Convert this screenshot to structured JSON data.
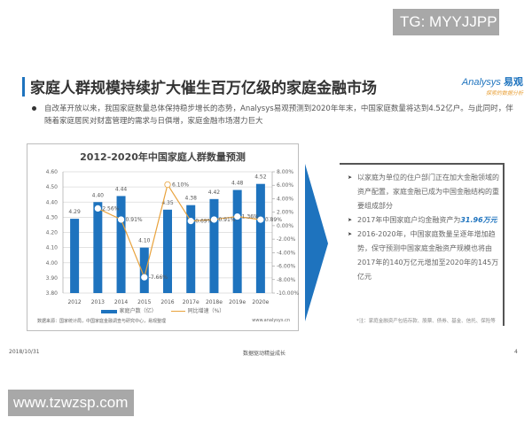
{
  "watermarks": {
    "top": "TG: MYYJJPP",
    "bottom": "www.tzwzsp.com"
  },
  "slide": {
    "title": "家庭人群规模持续扩大催生百万亿级的家庭金融市场",
    "logo": {
      "brand": "Analysys",
      "brand_cn": "易观",
      "tagline": "探索的数据分析"
    },
    "summary": "自改革开放以来，我国家庭数量总体保持稳步增长的态势，Analysys易观预测到2020年年末，中国家庭数量将达到4.52亿户。与此同时，伴随着家庭居民对财富管理的需求与日俱增，家庭金融市场潜力巨大",
    "points": [
      {
        "text": "以家庭为单位的住户部门正在加大金融领域的资产配置，家庭金融已成为中国金融结构的重要组成部分"
      },
      {
        "prefix": "2017年中国家庭户均金融资产为",
        "highlight": "31.96万元"
      },
      {
        "text": "2016-2020年，中国家庭数量呈逐年增加趋势，保守预测中国家庭金融资产规模也将由2017年的140万亿元增加至2020年的145万亿元"
      }
    ],
    "note": "*注：家庭金融资产包括存款、股票、债券、基金、信托、保险等",
    "footer": {
      "date": "2018/10/31",
      "center": "数据驱动精益成长",
      "page": "4"
    }
  },
  "chart_data": {
    "type": "bar",
    "title": "2012-2020年中国家庭人群数量预测",
    "categories": [
      "2012",
      "2013",
      "2014",
      "2015",
      "2016",
      "2017e",
      "2018e",
      "2019e",
      "2020e"
    ],
    "series": [
      {
        "name": "家庭户数（亿）",
        "type": "bar",
        "axis": "left",
        "color": "#1e73be",
        "values": [
          4.29,
          4.4,
          4.44,
          4.1,
          4.35,
          4.38,
          4.42,
          4.48,
          4.52
        ]
      },
      {
        "name": "同比增速（%）",
        "type": "line",
        "axis": "right",
        "color": "#e8a23c",
        "values": [
          null,
          2.56,
          0.91,
          -7.66,
          6.1,
          0.69,
          0.91,
          1.36,
          0.89
        ],
        "labels": [
          "",
          "2.56%",
          "0.91%",
          "-7.66%",
          "6.10%",
          "0.69%",
          "0.91%",
          "1.36%",
          "0.89%"
        ]
      }
    ],
    "y_left": {
      "min": 3.8,
      "max": 4.6,
      "step": 0.1,
      "ticks": [
        "4.60",
        "4.50",
        "4.40",
        "4.30",
        "4.20",
        "4.10",
        "4.00",
        "3.90",
        "3.80"
      ]
    },
    "y_right": {
      "min": -10,
      "max": 8,
      "step": 2,
      "ticks": [
        "8.00%",
        "6.00%",
        "4.00%",
        "2.00%",
        "0.00%",
        "-2.00%",
        "-4.00%",
        "-6.00%",
        "-8.00%",
        "-10.00%"
      ]
    },
    "grid": true,
    "legend_position": "bottom",
    "source": "数据来源：国家统计局，中国家庭金融调查与研究中心，易观整理",
    "source_url": "www.analysys.cn"
  }
}
